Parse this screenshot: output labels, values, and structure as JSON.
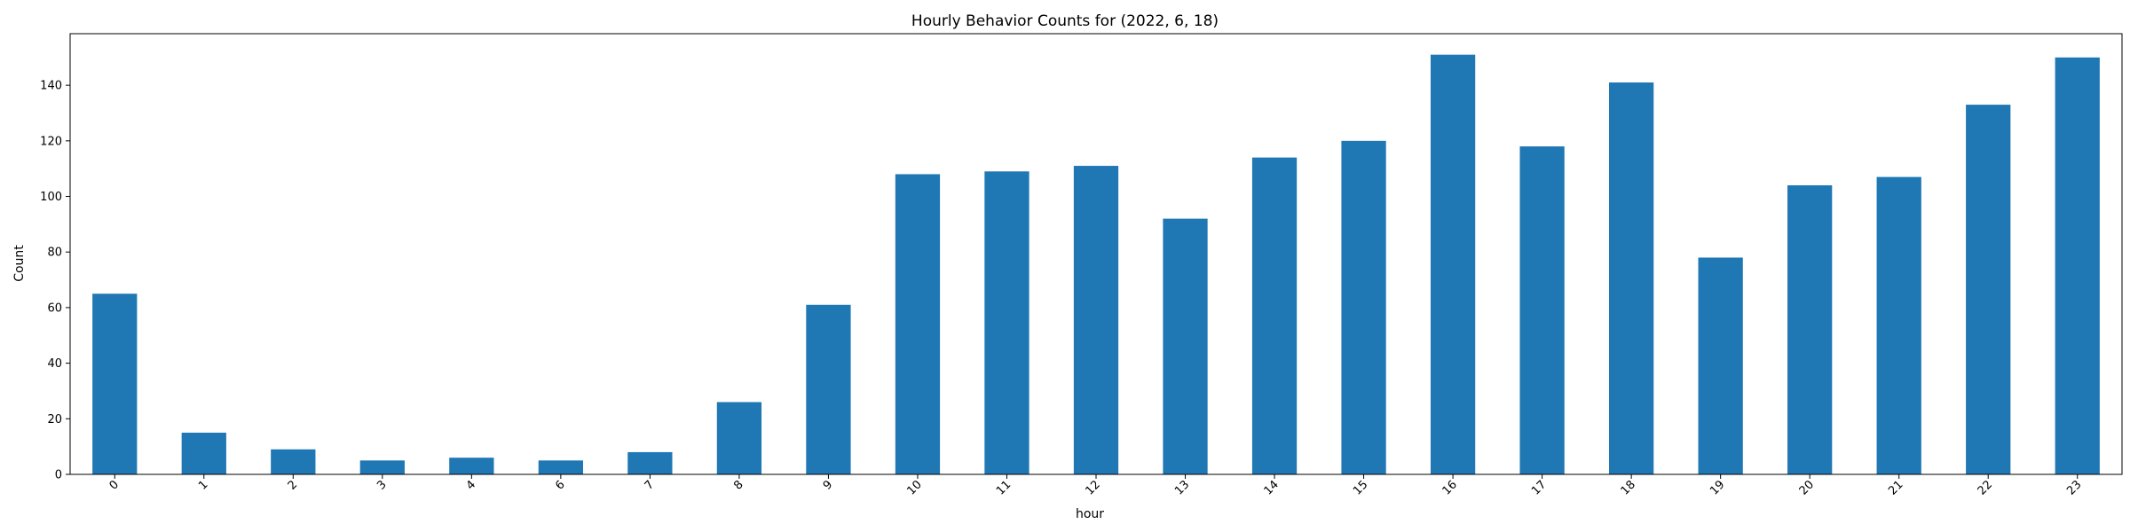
{
  "chart_data": {
    "type": "bar",
    "title": "Hourly Behavior Counts for (2022, 6, 18)",
    "xlabel": "hour",
    "ylabel": "Count",
    "categories": [
      "0",
      "1",
      "2",
      "3",
      "4",
      "6",
      "7",
      "8",
      "9",
      "10",
      "11",
      "12",
      "13",
      "14",
      "15",
      "16",
      "17",
      "18",
      "19",
      "20",
      "21",
      "22",
      "23"
    ],
    "values": [
      65,
      15,
      9,
      5,
      6,
      5,
      8,
      26,
      61,
      108,
      109,
      111,
      92,
      114,
      120,
      151,
      118,
      141,
      78,
      104,
      107,
      133,
      150
    ],
    "ylim": [
      0,
      158.55
    ],
    "yticks": [
      0,
      20,
      40,
      60,
      80,
      100,
      120,
      140
    ],
    "bar_color": "#1f77b4",
    "grid": false,
    "legend": "none",
    "x_tick_rotation": 45
  }
}
